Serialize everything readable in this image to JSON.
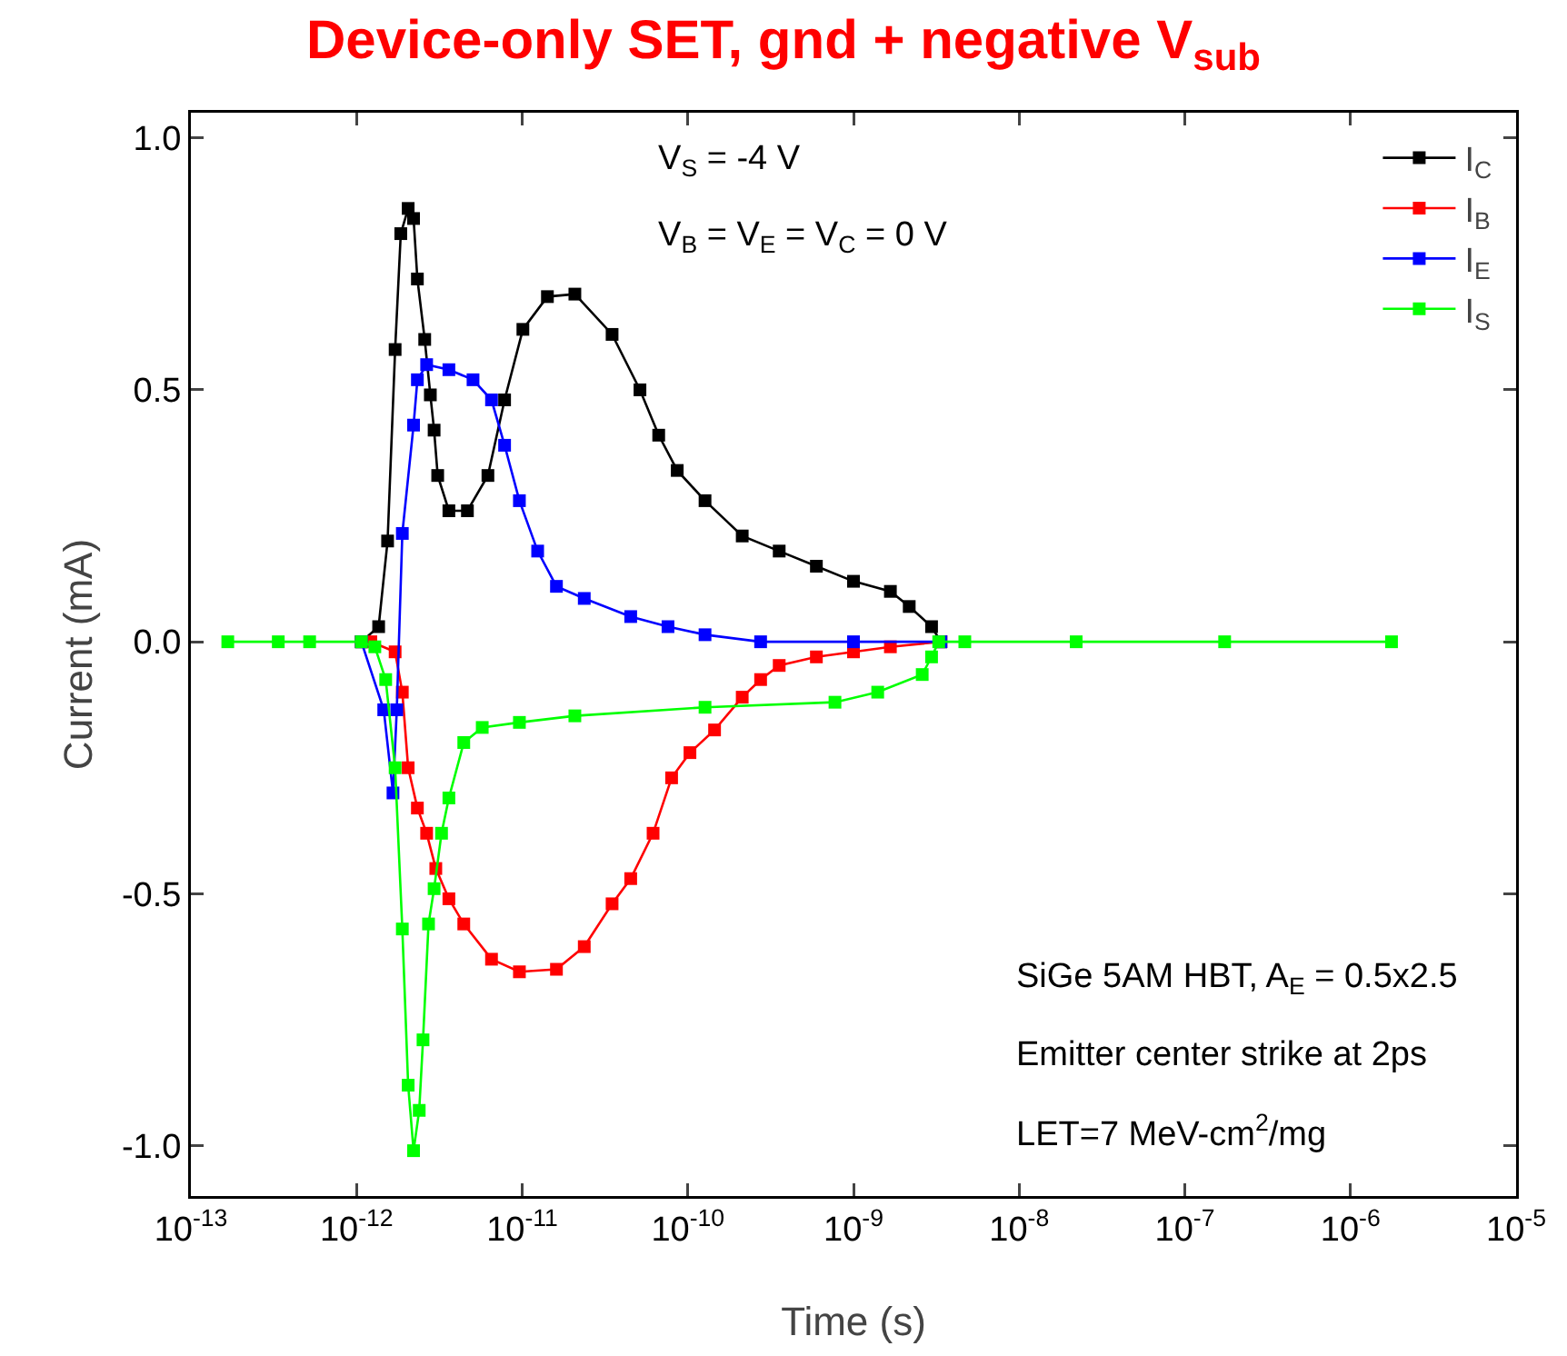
{
  "chart_data": {
    "type": "line",
    "title": "Device-only SET, gnd + negative V$_{sub}$",
    "xlabel": "Time (s)",
    "ylabel": "Current (mA)",
    "log": "x",
    "marker": "square",
    "line_style": "solid",
    "grid": false,
    "legend": "top right",
    "xlim": [
      1e-13,
      1e-05
    ],
    "ylim": [
      -1.1,
      1.05
    ],
    "xticks": [
      {
        "value": 1e-13,
        "label": "10$^{-13}$"
      },
      {
        "value": 1e-12,
        "label": "10$^{-12}$"
      },
      {
        "value": 1e-11,
        "label": "10$^{-11}$"
      },
      {
        "value": 1e-10,
        "label": "10$^{-10}$"
      },
      {
        "value": 1e-09,
        "label": "10$^{-9}$"
      },
      {
        "value": 1e-08,
        "label": "10$^{-8}$"
      },
      {
        "value": 1e-07,
        "label": "10$^{-7}$"
      },
      {
        "value": 1e-06,
        "label": "10$^{-6}$"
      },
      {
        "value": 1e-05,
        "label": "10$^{-5}$"
      }
    ],
    "yticks": [
      {
        "value": -1,
        "label": "-1.0"
      },
      {
        "value": -0.5,
        "label": "-0.5"
      },
      {
        "value": 0,
        "label": "0.0"
      },
      {
        "value": 0.5,
        "label": "0.5"
      },
      {
        "value": 1,
        "label": "1.0"
      }
    ],
    "annotations": [
      "V$_{S}$ = -4 V",
      "V$_{B}$ = V$_{E}$ = V$_{C}$ = 0 V",
      "SiGe 5AM HBT, A$_{E}$ = 0.5x2.5",
      "Emitter center strike at 2ps",
      "LET=7 MeV-cm$^{2}$/mg"
    ],
    "series": [
      {
        "name": "I$_{C}$",
        "color": "#000000",
        "x": [
          1.07e-12,
          1.36e-12,
          1.54e-12,
          1.71e-12,
          1.85e-12,
          2.05e-12,
          2.21e-12,
          2.33e-12,
          2.58e-12,
          2.79e-12,
          2.94e-12,
          3.09e-12,
          3.61e-12,
          4.67e-12,
          6.21e-12,
          7.83e-12,
          1.01e-11,
          1.42e-11,
          2.08e-11,
          3.49e-11,
          5.14e-11,
          6.67e-11,
          8.63e-11,
          1.27e-10,
          2.13e-10,
          3.56e-10,
          5.97e-10,
          1e-09,
          1.67e-09,
          2.17e-09,
          2.96e-09,
          3.37e-09
        ],
        "values": [
          0,
          0.03,
          0.2,
          0.58,
          0.81,
          0.86,
          0.84,
          0.72,
          0.6,
          0.49,
          0.42,
          0.33,
          0.26,
          0.26,
          0.33,
          0.48,
          0.62,
          0.685,
          0.69,
          0.61,
          0.5,
          0.41,
          0.34,
          0.28,
          0.21,
          0.18,
          0.15,
          0.12,
          0.1,
          0.07,
          0.03,
          0
        ]
      },
      {
        "name": "I$_{B}$",
        "color": "#ff0000",
        "x": [
          1.07e-12,
          1.22e-12,
          1.71e-12,
          1.89e-12,
          2.05e-12,
          2.33e-12,
          2.65e-12,
          3.01e-12,
          3.61e-12,
          4.44e-12,
          6.53e-12,
          9.62e-12,
          1.61e-11,
          2.37e-11,
          3.49e-11,
          4.52e-11,
          6.17e-11,
          7.98e-11,
          1.03e-10,
          1.45e-10,
          2.13e-10,
          2.75e-10,
          3.56e-10,
          5.97e-10,
          1e-09,
          1.67e-09,
          3.37e-09
        ],
        "values": [
          0,
          0,
          -0.02,
          -0.1,
          -0.25,
          -0.33,
          -0.38,
          -0.45,
          -0.51,
          -0.56,
          -0.63,
          -0.655,
          -0.65,
          -0.605,
          -0.52,
          -0.47,
          -0.38,
          -0.27,
          -0.22,
          -0.175,
          -0.11,
          -0.075,
          -0.047,
          -0.03,
          -0.02,
          -0.01,
          0
        ]
      },
      {
        "name": "I$_{E}$",
        "color": "#0000ff",
        "x": [
          1.07e-12,
          1.46e-12,
          1.66e-12,
          1.75e-12,
          1.89e-12,
          2.21e-12,
          2.33e-12,
          2.65e-12,
          3.61e-12,
          5.05e-12,
          6.53e-12,
          7.83e-12,
          9.62e-12,
          1.24e-11,
          1.61e-11,
          2.37e-11,
          4.52e-11,
          7.59e-11,
          1.27e-10,
          2.75e-10,
          1e-09,
          3.37e-09
        ],
        "values": [
          0,
          -0.135,
          -0.3,
          -0.135,
          0.215,
          0.43,
          0.52,
          0.55,
          0.54,
          0.52,
          0.48,
          0.39,
          0.28,
          0.18,
          0.11,
          0.086,
          0.05,
          0.03,
          0.014,
          0,
          0,
          0
        ]
      },
      {
        "name": "I$_{S}$",
        "color": "#00ff00",
        "x": [
          1.67e-13,
          3.37e-13,
          5.21e-13,
          1.07e-12,
          1.29e-12,
          1.5e-12,
          1.71e-12,
          1.89e-12,
          2.05e-12,
          2.21e-12,
          2.39e-12,
          2.52e-12,
          2.72e-12,
          2.94e-12,
          3.26e-12,
          3.61e-12,
          4.44e-12,
          5.74e-12,
          9.62e-12,
          2.08e-11,
          1.27e-10,
          7.73e-10,
          1.4e-09,
          2.6e-09,
          2.96e-09,
          3.27e-09,
          4.7e-09,
          2.21e-08,
          1.74e-07,
          1.77e-06
        ],
        "values": [
          0,
          0,
          0,
          0,
          -0.01,
          -0.075,
          -0.25,
          -0.57,
          -0.88,
          -1.01,
          -0.93,
          -0.79,
          -0.56,
          -0.49,
          -0.38,
          -0.31,
          -0.2,
          -0.17,
          -0.16,
          -0.147,
          -0.13,
          -0.12,
          -0.1,
          -0.065,
          -0.03,
          0,
          0,
          0,
          0,
          0
        ]
      }
    ]
  }
}
